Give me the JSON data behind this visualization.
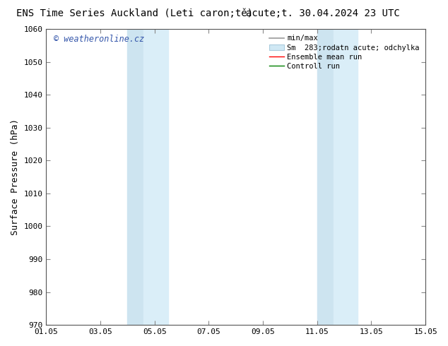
{
  "title_left": "ENS Time Series Auckland (Leti caron;tě)",
  "title_right": "acute;t. 30.04.2024 23 UTC",
  "ylabel": "Surface Pressure (hPa)",
  "ylim": [
    970,
    1060
  ],
  "yticks": [
    970,
    980,
    990,
    1000,
    1010,
    1020,
    1030,
    1040,
    1050,
    1060
  ],
  "x_tick_labels": [
    "01.05",
    "03.05",
    "05.05",
    "07.05",
    "09.05",
    "11.05",
    "13.05",
    "15.05"
  ],
  "x_tick_positions": [
    0,
    2,
    4,
    6,
    8,
    10,
    12,
    14
  ],
  "xlim": [
    0,
    14
  ],
  "shaded_regions": [
    {
      "xstart": 3.0,
      "xend": 3.5,
      "color": "#ddeef8"
    },
    {
      "xstart": 3.5,
      "xend": 4.5,
      "color": "#ddeef8"
    },
    {
      "xstart": 10.0,
      "xend": 10.5,
      "color": "#ddeef8"
    },
    {
      "xstart": 10.5,
      "xend": 11.5,
      "color": "#ddeef8"
    }
  ],
  "watermark_text": "© weatheronline.cz",
  "watermark_color": "#3355aa",
  "background_color": "#ffffff",
  "plot_bg_color": "#ffffff",
  "title_fontsize": 10,
  "tick_fontsize": 8,
  "ylabel_fontsize": 9,
  "legend_fontsize": 7.5
}
